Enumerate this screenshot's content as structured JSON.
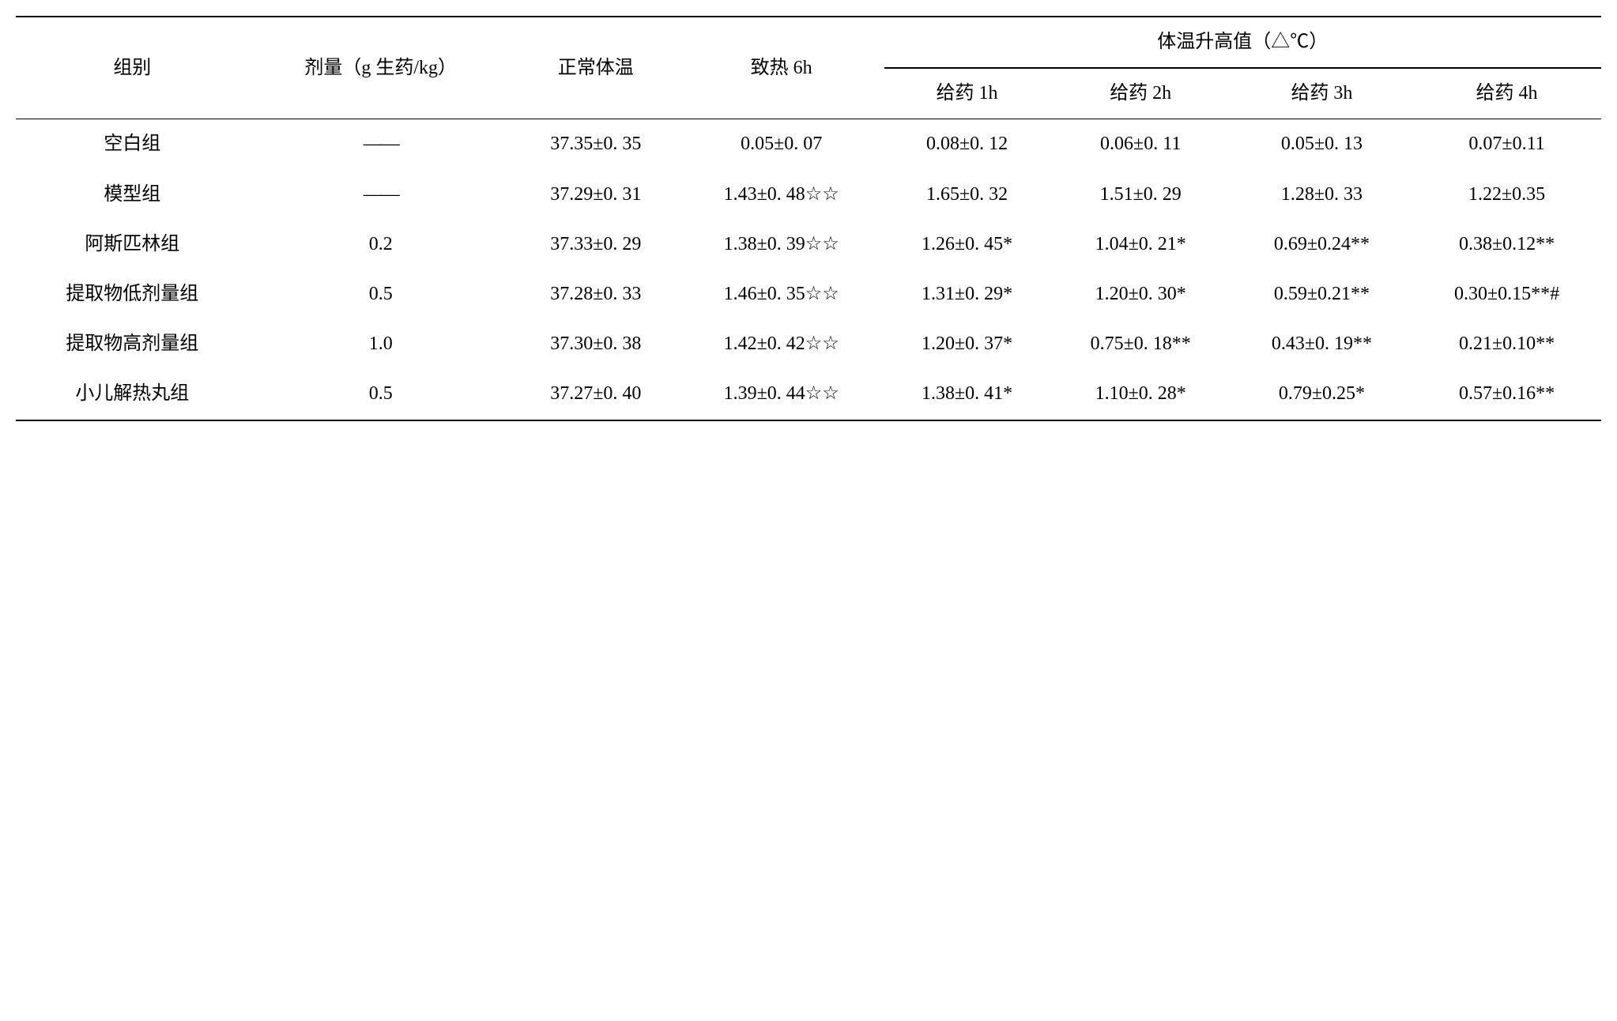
{
  "table": {
    "headers": {
      "group": "组别",
      "dose": "剂量（g 生药/kg）",
      "normal_temp": "正常体温",
      "heat_6h": "致热 6h",
      "temp_rise_header": "体温升高值（△℃）",
      "drug_1h": "给药 1h",
      "drug_2h": "给药 2h",
      "drug_3h": "给药 3h",
      "drug_4h": "给药 4h"
    },
    "rows": [
      {
        "group": "空白组",
        "dose": "——",
        "normal_temp": "37.35±0. 35",
        "heat_6h": "0.05±0. 07",
        "drug_1h": "0.08±0. 12",
        "drug_2h": "0.06±0. 11",
        "drug_3h": "0.05±0. 13",
        "drug_4h": "0.07±0.11"
      },
      {
        "group": "模型组",
        "dose": "——",
        "normal_temp": "37.29±0. 31",
        "heat_6h": "1.43±0. 48☆☆",
        "drug_1h": "1.65±0. 32",
        "drug_2h": "1.51±0. 29",
        "drug_3h": "1.28±0. 33",
        "drug_4h": "1.22±0.35"
      },
      {
        "group": "阿斯匹林组",
        "dose": "0.2",
        "normal_temp": "37.33±0. 29",
        "heat_6h": "1.38±0. 39☆☆",
        "drug_1h": "1.26±0. 45*",
        "drug_2h": "1.04±0. 21*",
        "drug_3h": "0.69±0.24**",
        "drug_4h": "0.38±0.12**"
      },
      {
        "group": "提取物低剂量组",
        "dose": "0.5",
        "normal_temp": "37.28±0. 33",
        "heat_6h": "1.46±0. 35☆☆",
        "drug_1h": "1.31±0. 29*",
        "drug_2h": "1.20±0. 30*",
        "drug_3h": "0.59±0.21**",
        "drug_4h": "0.30±0.15**#"
      },
      {
        "group": "提取物高剂量组",
        "dose": "1.0",
        "normal_temp": "37.30±0. 38",
        "heat_6h": "1.42±0. 42☆☆",
        "drug_1h": "1.20±0. 37*",
        "drug_2h": "0.75±0. 18**",
        "drug_3h": "0.43±0. 19**",
        "drug_4h": "0.21±0.10**"
      },
      {
        "group": "小儿解热丸组",
        "dose": "0.5",
        "normal_temp": "37.27±0. 40",
        "heat_6h": "1.39±0. 44☆☆",
        "drug_1h": "1.38±0. 41*",
        "drug_2h": "1.10±0. 28*",
        "drug_3h": "0.79±0.25*",
        "drug_4h": "0.57±0.16**"
      }
    ]
  },
  "styling": {
    "background_color": "#ffffff",
    "text_color": "#000000",
    "border_color": "#000000",
    "font_family": "SimSun",
    "font_size": 24,
    "border_width_thick": 2,
    "border_width_thin": 1
  }
}
